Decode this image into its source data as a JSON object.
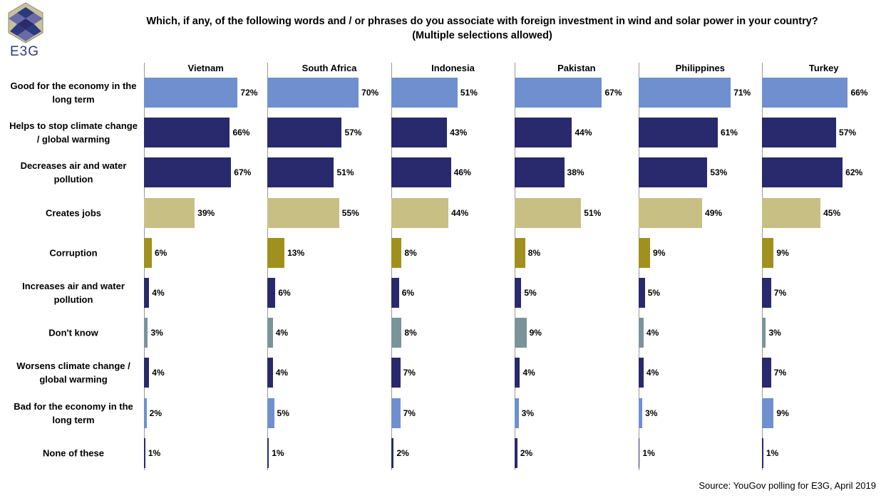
{
  "logo": "E3G",
  "chart_data": {
    "type": "bar",
    "orientation": "horizontal",
    "title": "Which, if any, of the following words and / or phrases do you associate with foreign investment in wind and solar power in your country?",
    "subtitle": "(Multiple selections allowed)",
    "source": "Source: YouGov polling for E3G, April 2019",
    "categories": [
      "Good for the economy in the long term",
      "Helps to stop climate change / global warming",
      "Decreases air and water pollution",
      "Creates jobs",
      "Corruption",
      "Increases air and water pollution",
      "Don't know",
      "Worsens climate change / global warming",
      "Bad for the economy in the long term",
      "None of these"
    ],
    "colors": [
      "#6f8fcf",
      "#29296e",
      "#29296e",
      "#c8bf85",
      "#a0901e",
      "#29296e",
      "#7a949a",
      "#29296e",
      "#6f8fcf",
      "#29296e"
    ],
    "xlim": [
      0,
      95
    ],
    "series": [
      {
        "name": "Vietnam",
        "values": [
          72,
          66,
          67,
          39,
          6,
          4,
          3,
          4,
          2,
          1
        ],
        "value_labels": [
          "72%",
          "66%",
          "67%",
          "39%",
          "6%",
          "4%",
          "3%",
          "4%",
          "2%",
          "1%"
        ]
      },
      {
        "name": "South Africa",
        "values": [
          70,
          57,
          51,
          55,
          13,
          6,
          4,
          4,
          5,
          1
        ],
        "value_labels": [
          "70%",
          "57%",
          "51%",
          "55%",
          "13%",
          "6%",
          "4%",
          "4%",
          "5%",
          "1%"
        ]
      },
      {
        "name": "Indonesia",
        "values": [
          51,
          43,
          46,
          44,
          8,
          6,
          8,
          7,
          7,
          2
        ],
        "value_labels": [
          "51%",
          "43%",
          "46%",
          "44%",
          "8%",
          "6%",
          "8%",
          "7%",
          "7%",
          "2%"
        ]
      },
      {
        "name": "Pakistan",
        "values": [
          67,
          44,
          38,
          51,
          8,
          5,
          9,
          4,
          3,
          2
        ],
        "value_labels": [
          "67%",
          "44%",
          "38%",
          "51%",
          "8%",
          "5%",
          "9%",
          "4%",
          "3%",
          "2%"
        ]
      },
      {
        "name": "Philippines",
        "values": [
          71,
          61,
          53,
          49,
          9,
          5,
          4,
          4,
          3,
          1
        ],
        "value_labels": [
          "71%",
          "61%",
          "53%",
          "49%",
          "9%",
          "5%",
          "4%",
          "4%",
          "3%",
          "1%"
        ]
      },
      {
        "name": "Turkey",
        "values": [
          66,
          57,
          62,
          45,
          9,
          7,
          3,
          7,
          9,
          1
        ],
        "value_labels": [
          "66%",
          "57%",
          "62%",
          "45%",
          "9%",
          "7%",
          "3%",
          "7%",
          "9%",
          "1%"
        ]
      }
    ]
  }
}
